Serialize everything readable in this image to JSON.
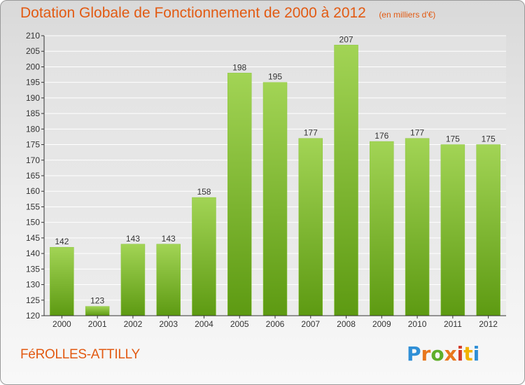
{
  "header": {
    "title": "Dotation Globale de Fonctionnement de 2000 à 2012",
    "subtitle": "(en milliers d'€)"
  },
  "footer": {
    "city": "FéROLLES-ATTILLY",
    "logo": {
      "letters": [
        "P",
        "r",
        "o",
        "x",
        "i",
        "t",
        "i"
      ],
      "colors": [
        "#2f8fd6",
        "#e8771d",
        "#5fae2a",
        "#e8771d",
        "#d43c2a",
        "#f2b200",
        "#2f8fd6"
      ]
    }
  },
  "colors": {
    "bar_light": "#a2d455",
    "bar_dark": "#5d9a12",
    "title": "#e25a12",
    "axis": "#333333",
    "grid": "#ffffff"
  },
  "chart_data": {
    "type": "bar",
    "title": "Dotation Globale de Fonctionnement de 2000 à 2012",
    "subtitle": "(en milliers d'€)",
    "categories": [
      "2000",
      "2001",
      "2002",
      "2003",
      "2004",
      "2005",
      "2006",
      "2007",
      "2008",
      "2009",
      "2010",
      "2011",
      "2012"
    ],
    "values": [
      142,
      123,
      143,
      143,
      158,
      198,
      195,
      177,
      207,
      176,
      177,
      175,
      175
    ],
    "ylim": [
      120,
      210
    ],
    "ytick_step": 5,
    "grid": true,
    "legend": "none"
  }
}
